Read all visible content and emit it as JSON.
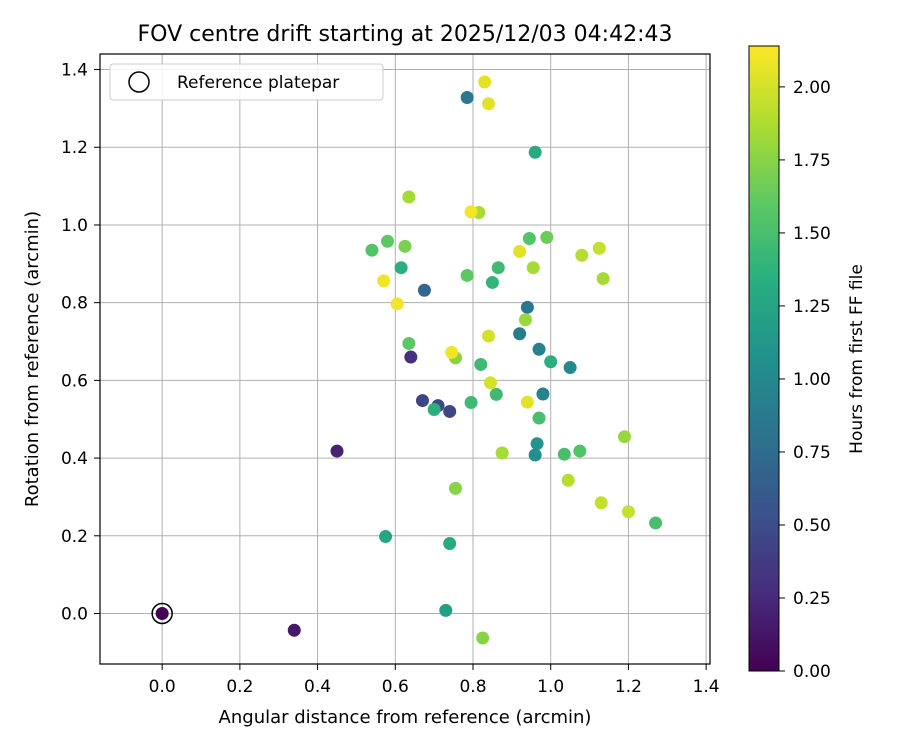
{
  "chart_data": {
    "type": "scatter",
    "title": "FOV centre drift starting at 2025/12/03 04:42:43",
    "xlabel": "Angular distance from reference (arcmin)",
    "ylabel": "Rotation from reference (arcmin)",
    "xlim": [
      -0.16,
      1.41
    ],
    "ylim": [
      -0.13,
      1.44
    ],
    "xticks": [
      0.0,
      0.2,
      0.4,
      0.6,
      0.8,
      1.0,
      1.2,
      1.4
    ],
    "xtick_labels": [
      "0.0",
      "0.2",
      "0.4",
      "0.6",
      "0.8",
      "1.0",
      "1.2",
      "1.4"
    ],
    "yticks": [
      0.0,
      0.2,
      0.4,
      0.6,
      0.8,
      1.0,
      1.2,
      1.4
    ],
    "ytick_labels": [
      "0.0",
      "0.2",
      "0.4",
      "0.6",
      "0.8",
      "1.0",
      "1.2",
      "1.4"
    ],
    "grid": true,
    "legend": {
      "position": "top-left",
      "label": "Reference platepar"
    },
    "reference_point": {
      "x": 0.0,
      "y": 0.0,
      "hours": 0.0
    },
    "colorbar": {
      "label": "Hours from first FF file",
      "colormap": "viridis",
      "range": [
        0.0,
        2.14
      ],
      "ticks": [
        0.0,
        0.25,
        0.5,
        0.75,
        1.0,
        1.25,
        1.5,
        1.75,
        2.0
      ],
      "tick_labels": [
        "0.00",
        "0.25",
        "0.50",
        "0.75",
        "1.00",
        "1.25",
        "1.50",
        "1.75",
        "2.00"
      ]
    },
    "points": [
      {
        "x": 0.0,
        "y": 0.0,
        "hours": 0.0
      },
      {
        "x": 0.34,
        "y": -0.043,
        "hours": 0.15
      },
      {
        "x": 0.45,
        "y": 0.418,
        "hours": 0.2
      },
      {
        "x": 0.64,
        "y": 0.66,
        "hours": 0.28
      },
      {
        "x": 0.67,
        "y": 0.548,
        "hours": 0.45
      },
      {
        "x": 0.71,
        "y": 0.535,
        "hours": 0.48
      },
      {
        "x": 0.74,
        "y": 0.52,
        "hours": 0.45
      },
      {
        "x": 0.675,
        "y": 0.832,
        "hours": 0.7
      },
      {
        "x": 0.785,
        "y": 1.328,
        "hours": 0.85
      },
      {
        "x": 0.94,
        "y": 0.788,
        "hours": 0.85
      },
      {
        "x": 0.92,
        "y": 0.72,
        "hours": 0.9
      },
      {
        "x": 0.97,
        "y": 0.68,
        "hours": 0.95
      },
      {
        "x": 0.98,
        "y": 0.565,
        "hours": 0.95
      },
      {
        "x": 1.05,
        "y": 0.633,
        "hours": 1.0
      },
      {
        "x": 0.965,
        "y": 0.437,
        "hours": 1.1
      },
      {
        "x": 0.96,
        "y": 0.408,
        "hours": 1.05
      },
      {
        "x": 0.73,
        "y": 0.008,
        "hours": 1.2
      },
      {
        "x": 0.575,
        "y": 0.198,
        "hours": 1.25
      },
      {
        "x": 0.74,
        "y": 0.18,
        "hours": 1.3
      },
      {
        "x": 0.96,
        "y": 1.187,
        "hours": 1.3
      },
      {
        "x": 0.7,
        "y": 0.525,
        "hours": 1.35
      },
      {
        "x": 1.0,
        "y": 0.648,
        "hours": 1.35
      },
      {
        "x": 0.615,
        "y": 0.89,
        "hours": 1.35
      },
      {
        "x": 0.85,
        "y": 0.852,
        "hours": 1.4
      },
      {
        "x": 0.865,
        "y": 0.89,
        "hours": 1.45
      },
      {
        "x": 0.82,
        "y": 0.641,
        "hours": 1.45
      },
      {
        "x": 0.795,
        "y": 0.543,
        "hours": 1.45
      },
      {
        "x": 0.86,
        "y": 0.564,
        "hours": 1.45
      },
      {
        "x": 0.97,
        "y": 0.503,
        "hours": 1.5
      },
      {
        "x": 1.27,
        "y": 0.233,
        "hours": 1.5
      },
      {
        "x": 1.035,
        "y": 0.41,
        "hours": 1.5
      },
      {
        "x": 1.075,
        "y": 0.418,
        "hours": 1.55
      },
      {
        "x": 0.945,
        "y": 0.965,
        "hours": 1.55
      },
      {
        "x": 0.54,
        "y": 0.935,
        "hours": 1.55
      },
      {
        "x": 0.785,
        "y": 0.87,
        "hours": 1.6
      },
      {
        "x": 0.58,
        "y": 0.958,
        "hours": 1.6
      },
      {
        "x": 0.635,
        "y": 0.695,
        "hours": 1.6
      },
      {
        "x": 0.99,
        "y": 0.968,
        "hours": 1.65
      },
      {
        "x": 0.625,
        "y": 0.945,
        "hours": 1.7
      },
      {
        "x": 0.755,
        "y": 0.658,
        "hours": 1.75
      },
      {
        "x": 0.825,
        "y": -0.063,
        "hours": 1.75
      },
      {
        "x": 0.755,
        "y": 0.322,
        "hours": 1.75
      },
      {
        "x": 1.19,
        "y": 0.455,
        "hours": 1.8
      },
      {
        "x": 0.935,
        "y": 0.756,
        "hours": 1.8
      },
      {
        "x": 0.875,
        "y": 0.413,
        "hours": 1.85
      },
      {
        "x": 0.955,
        "y": 0.89,
        "hours": 1.85
      },
      {
        "x": 0.635,
        "y": 1.072,
        "hours": 1.85
      },
      {
        "x": 0.815,
        "y": 1.032,
        "hours": 1.85
      },
      {
        "x": 1.135,
        "y": 0.862,
        "hours": 1.85
      },
      {
        "x": 1.045,
        "y": 0.343,
        "hours": 1.9
      },
      {
        "x": 1.08,
        "y": 0.922,
        "hours": 1.9
      },
      {
        "x": 1.125,
        "y": 0.94,
        "hours": 1.95
      },
      {
        "x": 1.13,
        "y": 0.285,
        "hours": 1.95
      },
      {
        "x": 1.2,
        "y": 0.262,
        "hours": 1.95
      },
      {
        "x": 0.845,
        "y": 0.594,
        "hours": 2.0
      },
      {
        "x": 0.84,
        "y": 0.714,
        "hours": 2.0
      },
      {
        "x": 0.84,
        "y": 1.312,
        "hours": 2.05
      },
      {
        "x": 0.83,
        "y": 1.368,
        "hours": 2.05
      },
      {
        "x": 0.94,
        "y": 0.544,
        "hours": 2.05
      },
      {
        "x": 0.92,
        "y": 0.932,
        "hours": 2.05
      },
      {
        "x": 0.605,
        "y": 0.797,
        "hours": 2.1
      },
      {
        "x": 0.57,
        "y": 0.856,
        "hours": 2.1
      },
      {
        "x": 0.795,
        "y": 1.034,
        "hours": 2.1
      },
      {
        "x": 0.745,
        "y": 0.672,
        "hours": 2.1
      }
    ]
  }
}
